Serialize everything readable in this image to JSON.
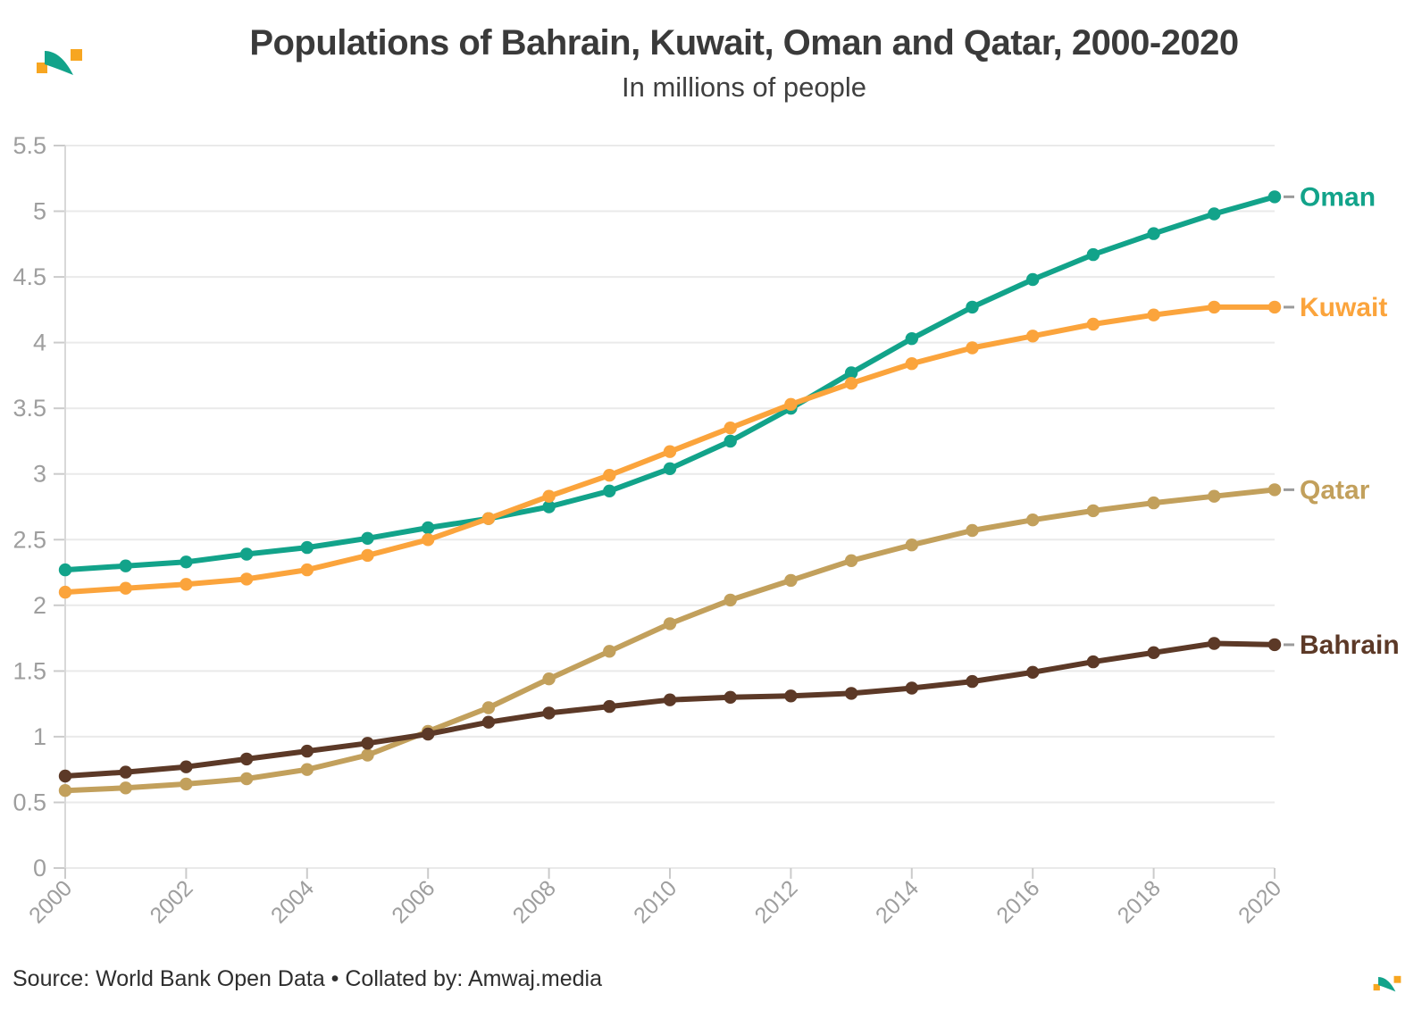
{
  "header": {
    "title": "Populations of Bahrain, Kuwait, Oman and Qatar, 2000-2020",
    "subtitle": "In millions of people"
  },
  "footer": {
    "source": "Source: World Bank Open Data • Collated by: Amwaj.media"
  },
  "brand": {
    "logo_name": "amwaj-wave-mark",
    "orange": "#F7A621",
    "teal": "#12A38A"
  },
  "chart_data": {
    "type": "line",
    "title": "Populations of Bahrain, Kuwait, Oman and Qatar, 2000-2020",
    "subtitle": "In millions of people",
    "xlabel": "",
    "ylabel": "",
    "grid": "horizontal",
    "legend_position": "right-end-labels",
    "xlim": [
      2000,
      2020
    ],
    "ylim": [
      0,
      5.5
    ],
    "x": [
      2000,
      2001,
      2002,
      2003,
      2004,
      2005,
      2006,
      2007,
      2008,
      2009,
      2010,
      2011,
      2012,
      2013,
      2014,
      2015,
      2016,
      2017,
      2018,
      2019,
      2020
    ],
    "xticks": [
      2000,
      2002,
      2004,
      2006,
      2008,
      2010,
      2012,
      2014,
      2016,
      2018,
      2020
    ],
    "yticks": [
      0,
      0.5,
      1,
      1.5,
      2,
      2.5,
      3,
      3.5,
      4,
      4.5,
      5,
      5.5
    ],
    "ytick_labels": [
      "0",
      "0.5",
      "1",
      "1.5",
      "2",
      "2.5",
      "3",
      "3.5",
      "4",
      "4.5",
      "5",
      "5.5"
    ],
    "series": [
      {
        "name": "Oman",
        "color": "#12A38A",
        "values": [
          2.27,
          2.3,
          2.33,
          2.39,
          2.44,
          2.51,
          2.59,
          2.66,
          2.75,
          2.87,
          3.04,
          3.25,
          3.5,
          3.77,
          4.03,
          4.27,
          4.48,
          4.67,
          4.83,
          4.98,
          5.11
        ]
      },
      {
        "name": "Kuwait",
        "color": "#FBA43C",
        "values": [
          2.1,
          2.13,
          2.16,
          2.2,
          2.27,
          2.38,
          2.5,
          2.66,
          2.83,
          2.99,
          3.17,
          3.35,
          3.53,
          3.69,
          3.84,
          3.96,
          4.05,
          4.14,
          4.21,
          4.27,
          4.27
        ]
      },
      {
        "name": "Qatar",
        "color": "#C2A05C",
        "values": [
          0.59,
          0.61,
          0.64,
          0.68,
          0.75,
          0.86,
          1.04,
          1.22,
          1.44,
          1.65,
          1.86,
          2.04,
          2.19,
          2.34,
          2.46,
          2.57,
          2.65,
          2.72,
          2.78,
          2.83,
          2.88
        ]
      },
      {
        "name": "Bahrain",
        "color": "#5C3927",
        "values": [
          0.7,
          0.73,
          0.77,
          0.83,
          0.89,
          0.95,
          1.02,
          1.11,
          1.18,
          1.23,
          1.28,
          1.3,
          1.31,
          1.33,
          1.37,
          1.42,
          1.49,
          1.57,
          1.64,
          1.71,
          1.7
        ]
      }
    ]
  }
}
